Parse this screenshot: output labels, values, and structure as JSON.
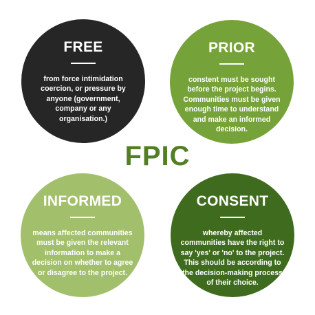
{
  "center_title": "FPIC",
  "circles": {
    "free": {
      "title": "FREE",
      "body": "from force intimidation coercion, or pressure by anyone (government, company or any organisation.)"
    },
    "prior": {
      "title": "PRIOR",
      "body": "constent must be sought before the project begins. Communities must be given enough time to understand and make an informed decision."
    },
    "informed": {
      "title": "INFORMED",
      "body": "means affected communities must be given the relevant information to make a decision on whether to agree or disagree to the project."
    },
    "consent": {
      "title": "CONSENT",
      "body": "whereby affected communities have the right to say 'yes' or 'no' to the project. This should be according to the decision-making process of their choice."
    }
  },
  "colors": {
    "free": "#262626",
    "prior": "#76a23a",
    "informed": "#a2bf6c",
    "consent": "#3e6b1d",
    "center_title": "#527f26"
  }
}
